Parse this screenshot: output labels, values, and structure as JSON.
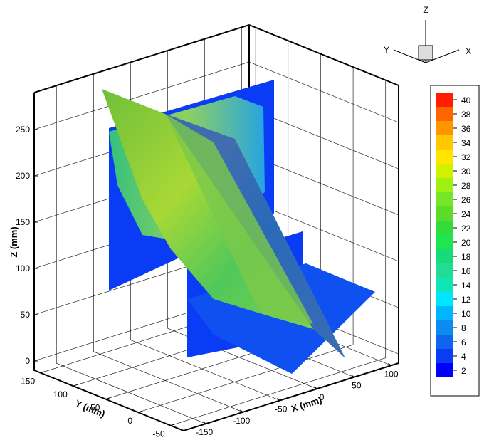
{
  "chart_data": {
    "type": "surface3d",
    "xlabel": "X (mm)",
    "ylabel": "Y (mm)",
    "zlabel": "Z (mm)",
    "xlim": [
      -180,
      110
    ],
    "ylim": [
      -70,
      160
    ],
    "zlim": [
      -10,
      290
    ],
    "xticks": [
      -150,
      -100,
      -50,
      0,
      50,
      100
    ],
    "yticks": [
      -50,
      0,
      50,
      100,
      150
    ],
    "zticks": [
      0,
      50,
      100,
      150,
      200,
      250
    ],
    "grid": true,
    "colorbar": {
      "levels": [
        2,
        4,
        6,
        8,
        10,
        12,
        14,
        16,
        18,
        20,
        22,
        24,
        26,
        28,
        30,
        32,
        34,
        36,
        38,
        40
      ],
      "colors": [
        "#0000ff",
        "#0a3cf5",
        "#0f64f0",
        "#0a8cf0",
        "#00b4ff",
        "#00e6ff",
        "#10e6b4",
        "#20dc96",
        "#14dc78",
        "#1ee650",
        "#32dc3c",
        "#5adc28",
        "#78e628",
        "#a0f014",
        "#d2f000",
        "#ffe600",
        "#ffc800",
        "#ff9600",
        "#ff6400",
        "#ff1e00"
      ]
    }
  },
  "orientation_axes": {
    "x": "X",
    "y": "Y",
    "z": "Z"
  }
}
